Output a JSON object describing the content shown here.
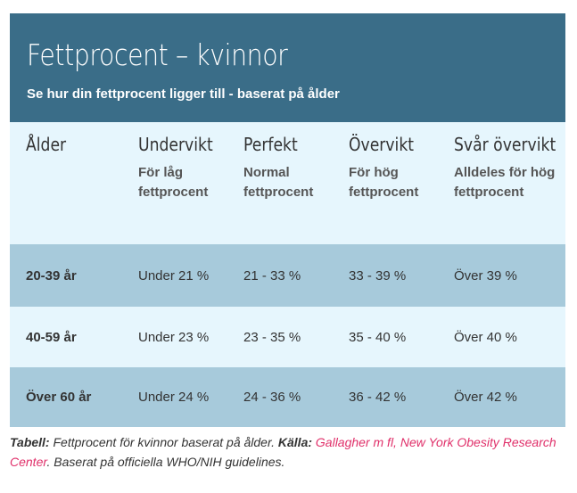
{
  "header": {
    "title": "Fettprocent – kvinnor",
    "subtitle": "Se hur din fettprocent ligger till - baserat på ålder"
  },
  "table": {
    "columns": [
      {
        "title": "Ålder",
        "subtitle": ""
      },
      {
        "title": "Undervikt",
        "subtitle": "För låg fettprocent"
      },
      {
        "title": "Perfekt",
        "subtitle": "Normal fettprocent"
      },
      {
        "title": "Övervikt",
        "subtitle": "För hög fettprocent"
      },
      {
        "title": "Svår övervikt",
        "subtitle": "Alldeles för hög fettprocent"
      }
    ],
    "rows": [
      {
        "age": "20-39 år",
        "undervikt": "Under 21 %",
        "perfekt": "21 - 33 %",
        "overvikt": "33 - 39 %",
        "svar": "Över 39 %"
      },
      {
        "age": "40-59 år",
        "undervikt": "Under 23 %",
        "perfekt": "23 - 35 %",
        "overvikt": "35 - 40 %",
        "svar": "Över 40 %"
      },
      {
        "age": "Över 60 år",
        "undervikt": "Under 24 %",
        "perfekt": "24 - 36 %",
        "overvikt": "36 - 42 %",
        "svar": "Över 42 %"
      }
    ]
  },
  "caption": {
    "label": "Tabell:",
    "text": " Fettprocent för kvinnor baserat på ålder. ",
    "source_label": "Källa:",
    "source_link": "Gallagher m fl, New York Obesity Research Center",
    "tail": ". Baserat på officiella WHO/NIH guidelines."
  },
  "colors": {
    "header_bg": "#3a6d88",
    "row_dark": "#a7cadb",
    "row_light": "#e6f6fd",
    "link": "#e0306a"
  }
}
